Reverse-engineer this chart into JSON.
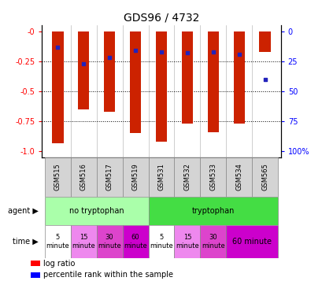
{
  "title": "GDS96 / 4732",
  "samples": [
    "GSM515",
    "GSM516",
    "GSM517",
    "GSM519",
    "GSM531",
    "GSM532",
    "GSM533",
    "GSM534",
    "GSM565"
  ],
  "log_ratio": [
    -0.93,
    -0.65,
    -0.67,
    -0.85,
    -0.92,
    -0.77,
    -0.84,
    -0.77,
    -0.17
  ],
  "percentile_rank": [
    13,
    27,
    22,
    16,
    17,
    18,
    17,
    19,
    40
  ],
  "ylim_left": [
    -1.05,
    0.05
  ],
  "ylim_right": [
    -1.05,
    0.05
  ],
  "yticks_left": [
    0,
    -0.25,
    -0.5,
    -0.75,
    -1.0
  ],
  "yticks_right_vals": [
    0,
    25,
    50,
    75,
    100
  ],
  "yticks_right_pos": [
    0,
    -0.25,
    -0.5,
    -0.75,
    -1.0
  ],
  "bar_color": "#cc2200",
  "dot_color": "#2222bb",
  "bar_width": 0.45,
  "agent_color_no": "#aaffaa",
  "agent_color_yes": "#44dd44",
  "time_colors": [
    "#ffffff",
    "#ee88ee",
    "#dd44cc",
    "#cc00cc"
  ],
  "no_trp_times": [
    "5\nminute",
    "15\nminute",
    "30\nminute",
    "60\nminute"
  ],
  "yes_trp_times_3": [
    "5\nminute",
    "15\nminute",
    "30\nminute"
  ],
  "yes_trp_last": "60 minute",
  "legend_red": "log ratio",
  "legend_blue": "percentile rank within the sample",
  "title_fontsize": 10,
  "tick_fontsize": 7,
  "sample_fontsize": 6,
  "annot_fontsize": 7,
  "time_fontsize": 6
}
